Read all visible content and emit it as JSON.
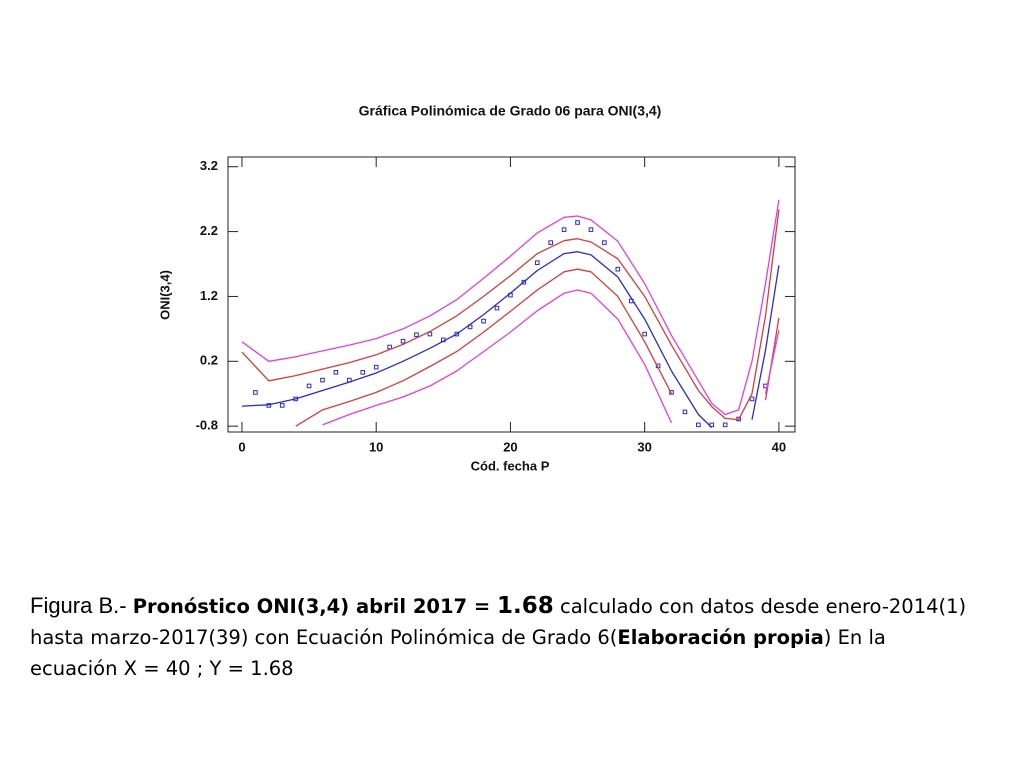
{
  "chart_data": {
    "type": "scatter",
    "title": "Gráfica Polinómica de Grado 06 para ONI(3,4)",
    "xlabel": "Cód. fecha P",
    "ylabel": "ONI(3,4)",
    "xlim": [
      -1.04,
      41.2
    ],
    "ylim": [
      -0.89,
      3.35
    ],
    "xticks": [
      0,
      10,
      20,
      30,
      40
    ],
    "yticks": [
      -0.8,
      0.2,
      1.2,
      2.2,
      3.2
    ],
    "series": [
      {
        "style": "markers",
        "color": "#2a2ad0",
        "x": [
          1,
          2,
          3,
          4,
          5,
          6,
          7,
          8,
          9,
          10,
          11,
          12,
          13,
          14,
          15,
          16,
          17,
          18,
          19,
          20,
          21,
          22,
          23,
          24,
          25,
          26,
          27,
          28,
          29,
          30,
          31,
          32,
          33,
          34,
          35,
          36,
          37,
          38,
          39
        ],
        "values": [
          -0.28,
          -0.48,
          -0.48,
          -0.38,
          -0.18,
          -0.09,
          0.03,
          -0.09,
          0.03,
          0.11,
          0.42,
          0.51,
          0.61,
          0.62,
          0.53,
          0.62,
          0.73,
          0.82,
          1.02,
          1.22,
          1.42,
          1.72,
          2.03,
          2.23,
          2.34,
          2.23,
          2.03,
          1.62,
          1.13,
          0.62,
          0.13,
          -0.28,
          -0.58,
          -0.78,
          -0.78,
          -0.78,
          -0.69,
          -0.38,
          -0.18
        ]
      },
      {
        "style": "line",
        "color": "#2a2ad0",
        "x": [
          0,
          2,
          4,
          6,
          8,
          10,
          12,
          14,
          16,
          18,
          20,
          22,
          24,
          25,
          26,
          28,
          30,
          32,
          34,
          35,
          36,
          37,
          38,
          39,
          40
        ],
        "values": [
          -0.49,
          -0.47,
          -0.38,
          -0.25,
          -0.12,
          0.02,
          0.2,
          0.4,
          0.62,
          0.92,
          1.25,
          1.6,
          1.86,
          1.89,
          1.84,
          1.5,
          0.85,
          0.05,
          -0.62,
          -0.82,
          null,
          null,
          -0.7,
          0.37,
          1.68
        ]
      },
      {
        "style": "line",
        "color": "#d83c3c",
        "x": [
          0,
          2,
          4,
          6,
          8,
          10,
          12,
          14,
          16,
          18,
          20,
          22,
          24,
          25,
          26,
          28,
          30,
          32,
          34,
          35,
          36,
          37,
          38,
          39,
          40
        ],
        "values": [
          0.34,
          -0.1,
          -0.02,
          0.08,
          0.18,
          0.3,
          0.46,
          0.66,
          0.9,
          1.2,
          1.52,
          1.86,
          2.06,
          2.09,
          2.04,
          1.78,
          1.2,
          0.45,
          -0.25,
          -0.5,
          -0.68,
          -0.7,
          -0.3,
          0.9,
          2.54
        ]
      },
      {
        "style": "line",
        "color": "#d83c3c",
        "x": [
          0,
          2,
          4,
          6,
          8,
          10,
          12,
          14,
          16,
          18,
          20,
          22,
          24,
          25,
          26,
          28,
          30,
          32,
          34,
          35,
          36,
          37,
          38,
          39,
          40
        ],
        "values": [
          null,
          null,
          -0.8,
          -0.55,
          -0.42,
          -0.28,
          -0.1,
          0.12,
          0.35,
          0.65,
          0.97,
          1.3,
          1.58,
          1.62,
          1.58,
          1.2,
          0.5,
          -0.3,
          null,
          null,
          null,
          null,
          null,
          -0.4,
          0.87
        ]
      },
      {
        "style": "line",
        "color": "#e040e0",
        "x": [
          0,
          2,
          4,
          6,
          8,
          10,
          12,
          14,
          16,
          18,
          20,
          22,
          24,
          25,
          26,
          28,
          30,
          32,
          34,
          35,
          36,
          37,
          38,
          39,
          40
        ],
        "values": [
          0.5,
          0.2,
          0.27,
          0.36,
          0.45,
          0.55,
          0.7,
          0.9,
          1.15,
          1.48,
          1.82,
          2.18,
          2.42,
          2.44,
          2.38,
          2.05,
          1.4,
          0.6,
          -0.1,
          -0.45,
          -0.62,
          -0.55,
          0.2,
          1.4,
          2.69
        ]
      },
      {
        "style": "line",
        "color": "#e040e0",
        "x": [
          0,
          2,
          4,
          6,
          8,
          10,
          12,
          14,
          16,
          18,
          20,
          22,
          24,
          25,
          26,
          28,
          30,
          32,
          34,
          35,
          36,
          37,
          38,
          39,
          40
        ],
        "values": [
          null,
          null,
          null,
          -0.78,
          -0.62,
          -0.48,
          -0.35,
          -0.18,
          0.05,
          0.35,
          0.65,
          0.98,
          1.25,
          1.3,
          1.25,
          0.85,
          0.15,
          -0.75,
          null,
          null,
          null,
          null,
          null,
          -0.3,
          0.68
        ]
      }
    ]
  },
  "caption": {
    "parts": [
      {
        "text": "Figura B.- ",
        "style": "light"
      },
      {
        "text": "Pronóstico ONI(3,4) abril 2017 = ",
        "style": "bold"
      },
      {
        "text": "1.68",
        "style": "big"
      },
      {
        "text": " calculado con datos desde enero-2014(1) hasta marzo-2017(39) con Ecuación Polinómica de Grado 6(",
        "style": "normal"
      },
      {
        "text": "Elaboración propia",
        "style": "bold"
      },
      {
        "text": ") En la ecuación X = 40 ; Y = 1.68",
        "style": "normal"
      }
    ]
  }
}
